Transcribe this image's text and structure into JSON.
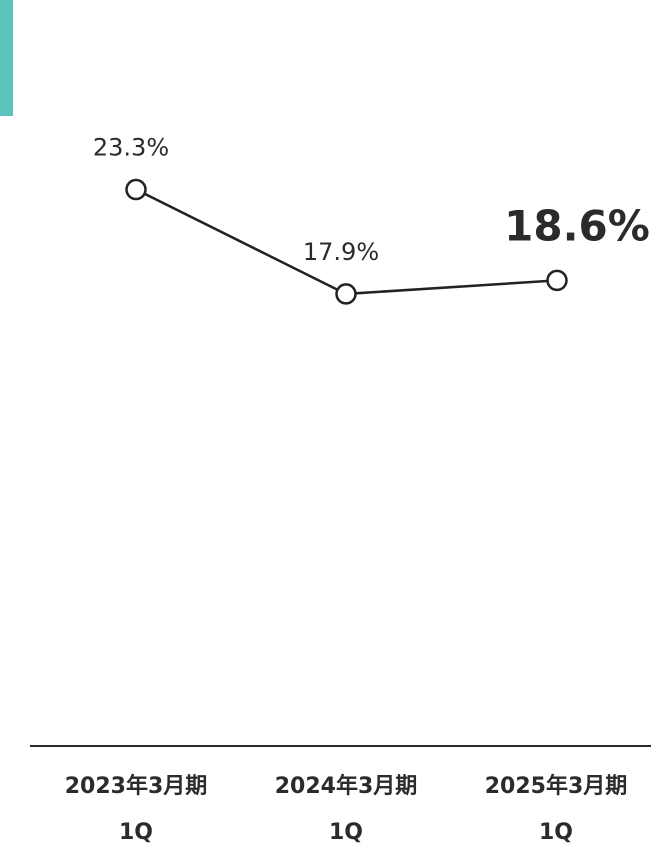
{
  "colors": {
    "accent": "#5bc4bd",
    "line": "#222222",
    "text": "#2b2b2b"
  },
  "chart_data": {
    "type": "line",
    "categories": [
      [
        "2023年3月期",
        "1Q"
      ],
      [
        "2024年3月期",
        "1Q"
      ],
      [
        "2025年3月期",
        "1Q"
      ]
    ],
    "values": [
      23.3,
      17.9,
      18.6
    ],
    "data_labels": [
      "23.3%",
      "17.9%",
      "18.6%"
    ],
    "highlight_index": 2,
    "ylim": [
      0,
      30
    ],
    "grid": false,
    "legend": "none"
  }
}
